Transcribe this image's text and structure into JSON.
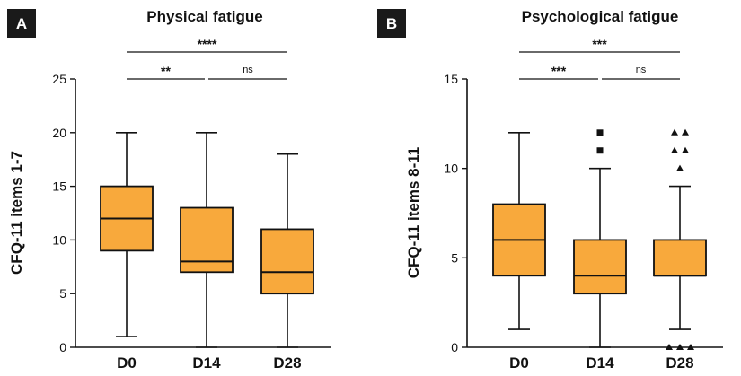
{
  "colors": {
    "box_fill": "#F8A93C",
    "stroke": "#111111",
    "badge": "#1a1a1a"
  },
  "chart_data": [
    {
      "type": "box",
      "panel": "A",
      "title": "Physical fatigue",
      "xlabel": "",
      "ylabel": "CFQ-11 items 1-7",
      "ylim": [
        0,
        25
      ],
      "yticks": [
        0,
        5,
        10,
        15,
        20,
        25
      ],
      "categories": [
        "D0",
        "D14",
        "D28"
      ],
      "boxes": [
        {
          "min": 1,
          "q1": 9,
          "median": 12,
          "q3": 15,
          "max": 20,
          "outliers": []
        },
        {
          "min": 0,
          "q1": 7,
          "median": 8,
          "q3": 13,
          "max": 20,
          "outliers": []
        },
        {
          "min": 0,
          "q1": 5,
          "median": 7,
          "q3": 11,
          "max": 18,
          "outliers": []
        }
      ],
      "outlier_marker": "square",
      "comparisons": [
        {
          "from": 0,
          "to": 2,
          "label": "****",
          "level": 2
        },
        {
          "from": 0,
          "to": 1,
          "label": "**",
          "level": 1
        },
        {
          "from": 1,
          "to": 2,
          "label": "ns",
          "level": 1
        }
      ]
    },
    {
      "type": "box",
      "panel": "B",
      "title": "Psychological fatigue",
      "xlabel": "",
      "ylabel": "CFQ-11 items 8-11",
      "ylim": [
        0,
        15
      ],
      "yticks": [
        0,
        5,
        10,
        15
      ],
      "categories": [
        "D0",
        "D14",
        "D28"
      ],
      "boxes": [
        {
          "min": 1,
          "q1": 4,
          "median": 6,
          "q3": 8,
          "max": 12,
          "outliers": []
        },
        {
          "min": 0,
          "q1": 3,
          "median": 4,
          "q3": 6,
          "max": 10,
          "outliers": [
            11,
            12
          ],
          "marker": "square"
        },
        {
          "min": 1,
          "q1": 4,
          "median": 4,
          "q3": 6,
          "max": 9,
          "outliers": [
            0,
            0,
            0,
            10,
            11,
            11,
            12,
            12
          ],
          "marker": "triangle"
        }
      ],
      "comparisons": [
        {
          "from": 0,
          "to": 2,
          "label": "***",
          "level": 2
        },
        {
          "from": 0,
          "to": 1,
          "label": "***",
          "level": 1
        },
        {
          "from": 1,
          "to": 2,
          "label": "ns",
          "level": 1
        }
      ]
    }
  ]
}
